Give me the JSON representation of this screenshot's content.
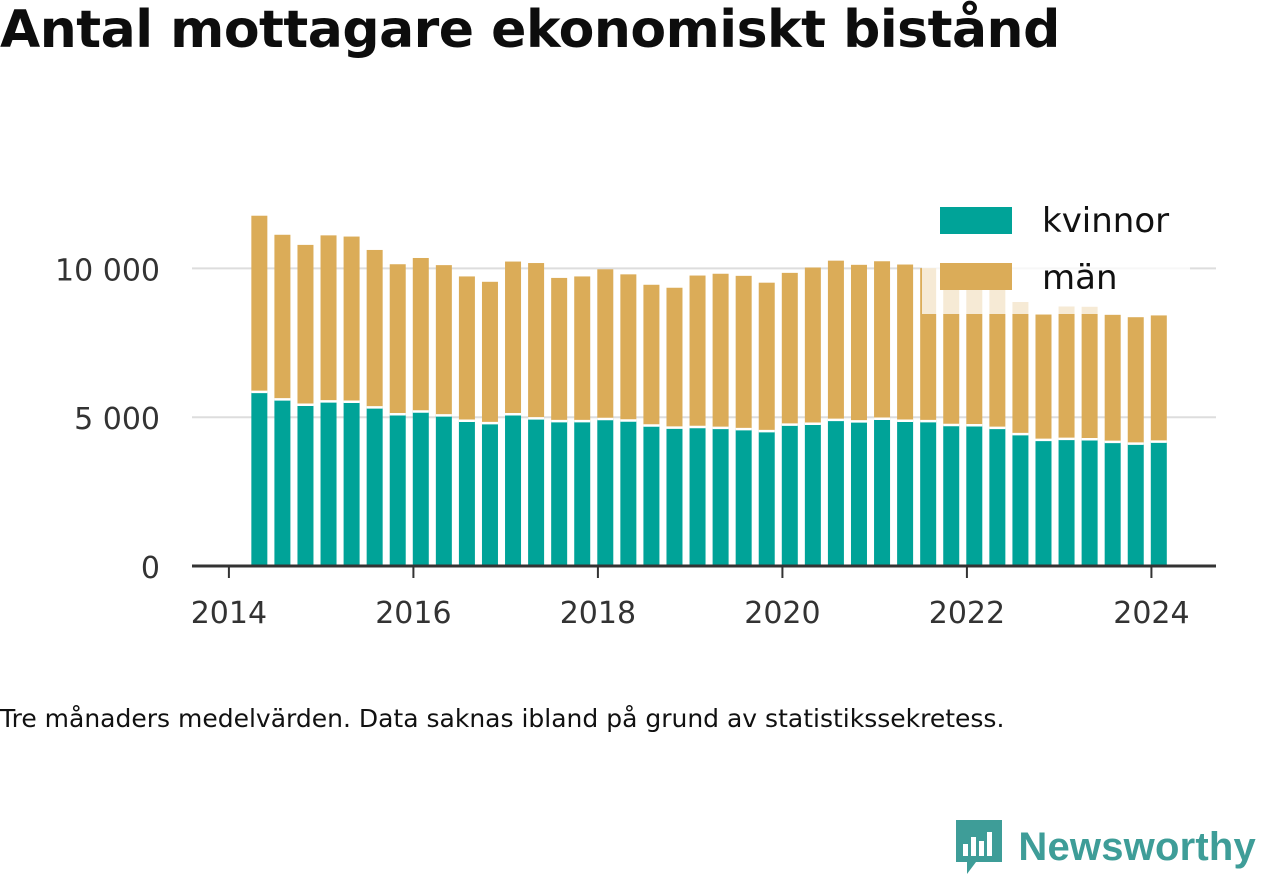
{
  "title": "Antal mottagare ekonomiskt bistånd",
  "footnote": "Tre månaders medelvärden. Data saknas ibland på grund av statistikssekretess.",
  "brand": "Newsworthy",
  "colors": {
    "kvinnor": "#00a398",
    "man": "#dbac58",
    "axis": "#333333",
    "grid": "#dddddd",
    "brand": "#3e9d98"
  },
  "chart_data": {
    "type": "bar",
    "stacked": true,
    "xlim": [
      2013.6,
      2024.7
    ],
    "ylim": [
      0,
      12500
    ],
    "yticks": [
      {
        "value": 0,
        "label": "0"
      },
      {
        "value": 5000,
        "label": "5 000"
      },
      {
        "value": 10000,
        "label": "10 000"
      }
    ],
    "xticks": [
      {
        "value": 2014,
        "label": "2014"
      },
      {
        "value": 2016,
        "label": "2016"
      },
      {
        "value": 2018,
        "label": "2018"
      },
      {
        "value": 2020,
        "label": "2020"
      },
      {
        "value": 2022,
        "label": "2022"
      },
      {
        "value": 2024,
        "label": "2024"
      }
    ],
    "grid": true,
    "legend_position": "top-right",
    "x": [
      2014.33,
      2014.58,
      2014.83,
      2015.08,
      2015.33,
      2015.58,
      2015.83,
      2016.08,
      2016.33,
      2016.58,
      2016.83,
      2017.08,
      2017.33,
      2017.58,
      2017.83,
      2018.08,
      2018.33,
      2018.58,
      2018.83,
      2019.08,
      2019.33,
      2019.58,
      2019.83,
      2020.08,
      2020.33,
      2020.58,
      2020.83,
      2021.08,
      2021.33,
      2021.58,
      2021.83,
      2022.08,
      2022.33,
      2022.58,
      2022.83,
      2023.08,
      2023.33,
      2023.58,
      2023.83,
      2024.08
    ],
    "series": [
      {
        "name": "kvinnor",
        "values": [
          5850,
          5600,
          5420,
          5530,
          5520,
          5330,
          5100,
          5190,
          5060,
          4880,
          4800,
          5100,
          4960,
          4870,
          4870,
          4940,
          4890,
          4720,
          4650,
          4670,
          4640,
          4600,
          4530,
          4750,
          4780,
          4910,
          4860,
          4950,
          4880,
          4870,
          4740,
          4730,
          4640,
          4430,
          4240,
          4270,
          4260,
          4170,
          4110,
          4180
        ]
      },
      {
        "name": "män",
        "values": [
          5920,
          5530,
          5370,
          5580,
          5550,
          5290,
          5040,
          5160,
          5050,
          4850,
          4750,
          5130,
          5220,
          4810,
          4860,
          5030,
          4910,
          4730,
          4700,
          5090,
          5180,
          5150,
          4990,
          5100,
          5250,
          5350,
          5260,
          5290,
          5250,
          5140,
          5270,
          5280,
          5300,
          4440,
          4210,
          4450,
          4450,
          4270,
          4250,
          4240
        ]
      }
    ]
  }
}
